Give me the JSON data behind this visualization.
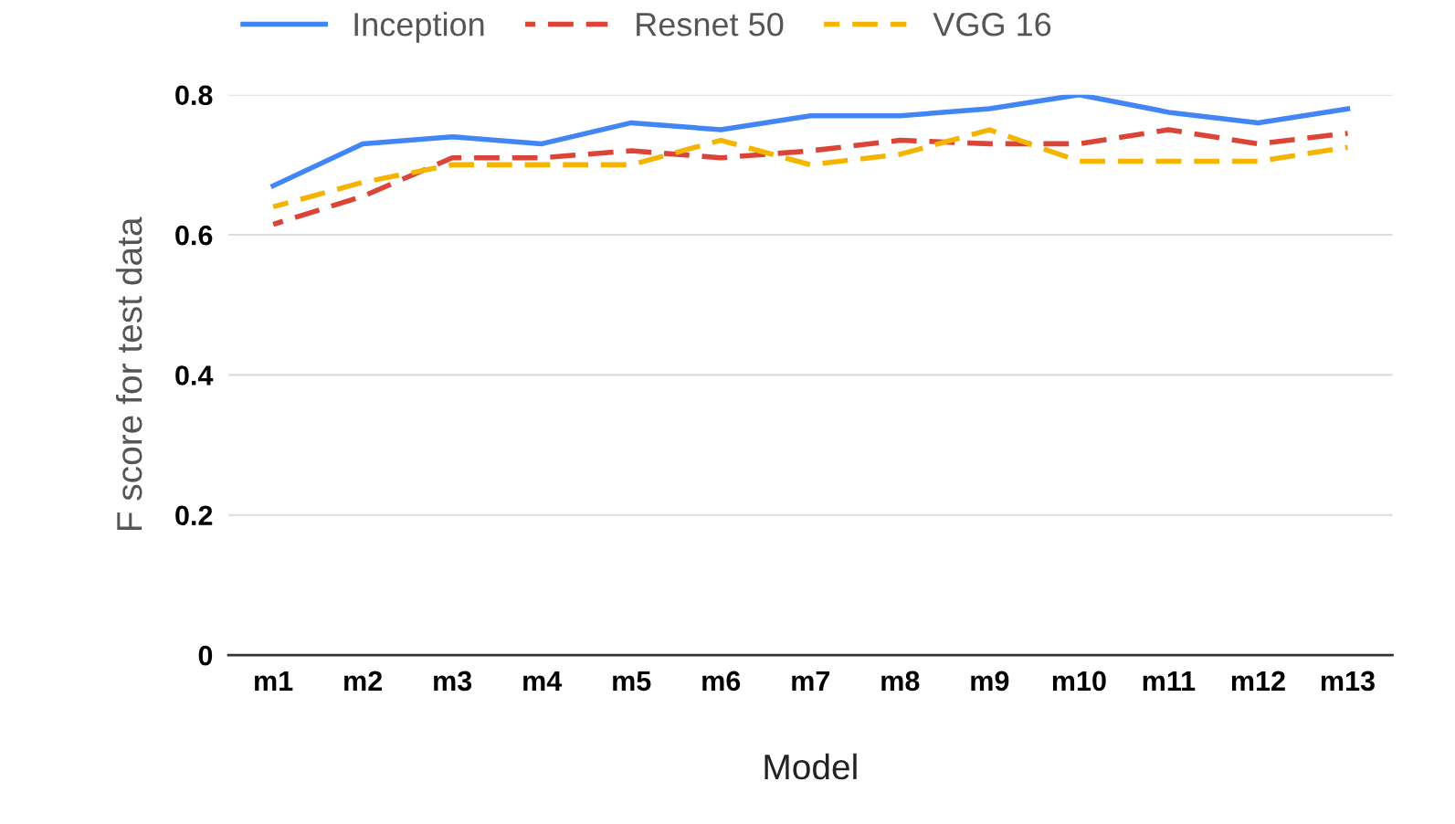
{
  "chart_data": {
    "type": "line",
    "xlabel": "Model",
    "ylabel": "F score for test data",
    "categories": [
      "m1",
      "m2",
      "m3",
      "m4",
      "m5",
      "m6",
      "m7",
      "m8",
      "m9",
      "m10",
      "m11",
      "m12",
      "m13"
    ],
    "series": [
      {
        "name": "Inception",
        "color": "#4285f4",
        "line_style": "solid",
        "values": [
          0.67,
          0.73,
          0.74,
          0.73,
          0.76,
          0.75,
          0.77,
          0.77,
          0.78,
          0.8,
          0.775,
          0.76,
          0.78
        ]
      },
      {
        "name": "Resnet 50",
        "color": "#db4437",
        "line_style": "dashed",
        "values": [
          0.615,
          0.655,
          0.71,
          0.71,
          0.72,
          0.71,
          0.72,
          0.735,
          0.73,
          0.73,
          0.75,
          0.73,
          0.745
        ]
      },
      {
        "name": "VGG 16",
        "color": "#f4b400",
        "line_style": "dashed",
        "values": [
          0.64,
          0.675,
          0.7,
          0.7,
          0.7,
          0.735,
          0.7,
          0.715,
          0.75,
          0.705,
          0.705,
          0.705,
          0.725
        ]
      }
    ],
    "ylim": [
      0,
      0.8
    ],
    "yticks": [
      0,
      0.2,
      0.4,
      0.6,
      0.8
    ],
    "grid": "y",
    "legend": "top",
    "marker": "none"
  }
}
